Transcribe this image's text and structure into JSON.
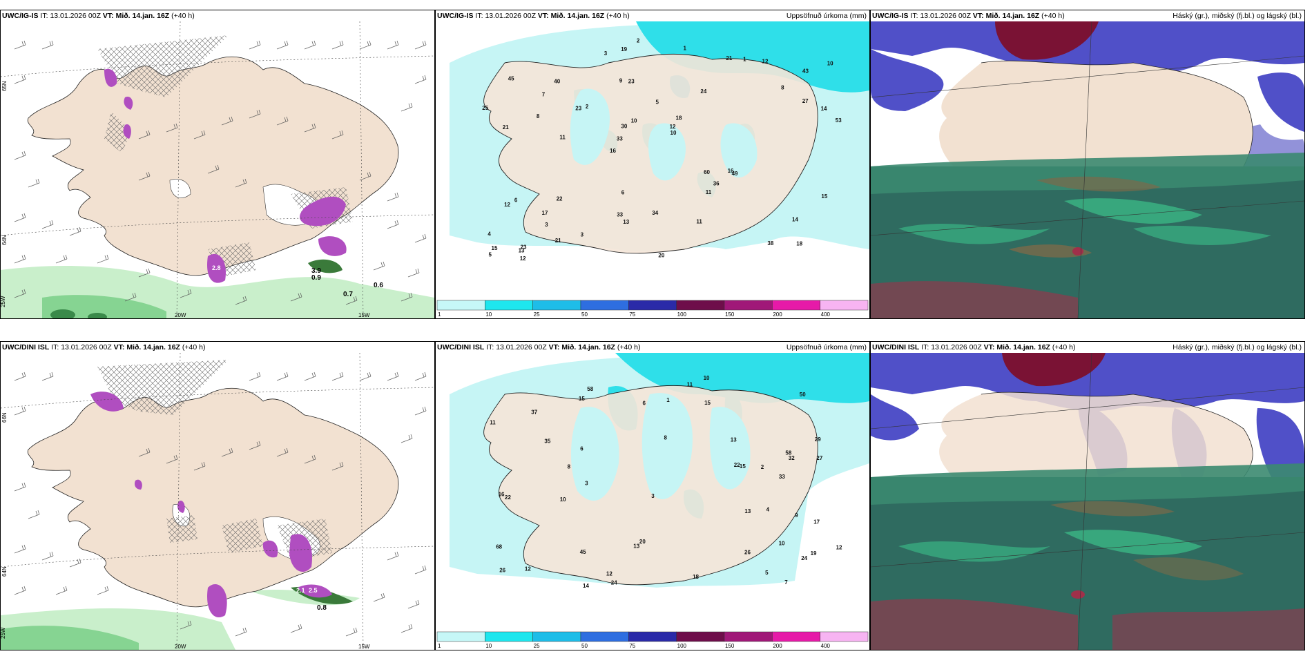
{
  "rows": [
    {
      "model": "UWC/IG-IS",
      "it_label": "IT:",
      "it_value": "13.01.2026 00Z",
      "vt_label": "VT:",
      "vt_value": "Mið. 14.jan. 16Z",
      "lead": "(+40 h)",
      "wind_labels": [
        "3.9",
        "0.9",
        "0.7",
        "0.6",
        "2.8"
      ],
      "precip_values": [
        "18",
        "21",
        "43",
        "16",
        "24",
        "23",
        "9",
        "5",
        "6",
        "2",
        "4",
        "3",
        "23",
        "18",
        "49",
        "45",
        "19",
        "53",
        "60",
        "27",
        "33",
        "33",
        "30",
        "40",
        "21",
        "22",
        "38",
        "14",
        "16",
        "20",
        "23",
        "8",
        "11",
        "21",
        "14",
        "12",
        "15",
        "13",
        "10",
        "12",
        "8",
        "10",
        "36",
        "11",
        "17",
        "12",
        "5",
        "34",
        "12",
        "2",
        "11",
        "25",
        "7",
        "1",
        "13",
        "1",
        "3",
        "10",
        "15",
        "6",
        "3"
      ]
    },
    {
      "model": "UWC/DINI ISL",
      "it_label": "IT:",
      "it_value": "13.01.2026 00Z",
      "vt_label": "VT:",
      "vt_value": "Mið. 14.jan. 16Z",
      "lead": "(+40 h)",
      "wind_labels": [
        "2.5",
        "0.8",
        "2.1"
      ],
      "precip_values": [
        "10",
        "29",
        "19",
        "8",
        "26",
        "58",
        "58",
        "45",
        "50",
        "35",
        "27",
        "11",
        "33",
        "24",
        "68",
        "37",
        "24",
        "15",
        "20",
        "32",
        "16",
        "22",
        "18",
        "22",
        "12",
        "13",
        "11",
        "15",
        "13",
        "12",
        "10",
        "26",
        "14",
        "3",
        "9",
        "5",
        "15",
        "6",
        "7",
        "3",
        "4",
        "2",
        "1",
        "8",
        "17",
        "13",
        "12",
        "10",
        "6"
      ]
    }
  ],
  "panel2_title": "Uppsöfnuð úrkoma (mm)",
  "panel3_title": "Háský (gr.), miðský (fj.bl.) og lágský (bl.)",
  "axis_labels": {
    "lat_65n": "65N",
    "lat_64n": "64N",
    "lat_66n": "66N",
    "lon_20w": "20W",
    "lon_15w": "15W",
    "lon_25w": "25W"
  },
  "legend": {
    "ticks": [
      "1",
      "10",
      "25",
      "50",
      "75",
      "100",
      "150",
      "200",
      "400"
    ],
    "colors": [
      "#c6f7f7",
      "#1ee6ee",
      "#1ebde8",
      "#2e6ee0",
      "#2a2aa8",
      "#6e0e4a",
      "#a01878",
      "#e61aa8",
      "#f7b4f2"
    ]
  },
  "colors": {
    "land": "#f5e6d8",
    "sea_precip": "#bff5f5",
    "sea_precip_mid": "#2fe0ec",
    "snow_purple": "#a040b0",
    "rain_green": "#9ee0a4",
    "cloud_high": "#7a1030",
    "cloud_mid": "#4a4ac0",
    "cloud_low": "#2e7a6a"
  }
}
